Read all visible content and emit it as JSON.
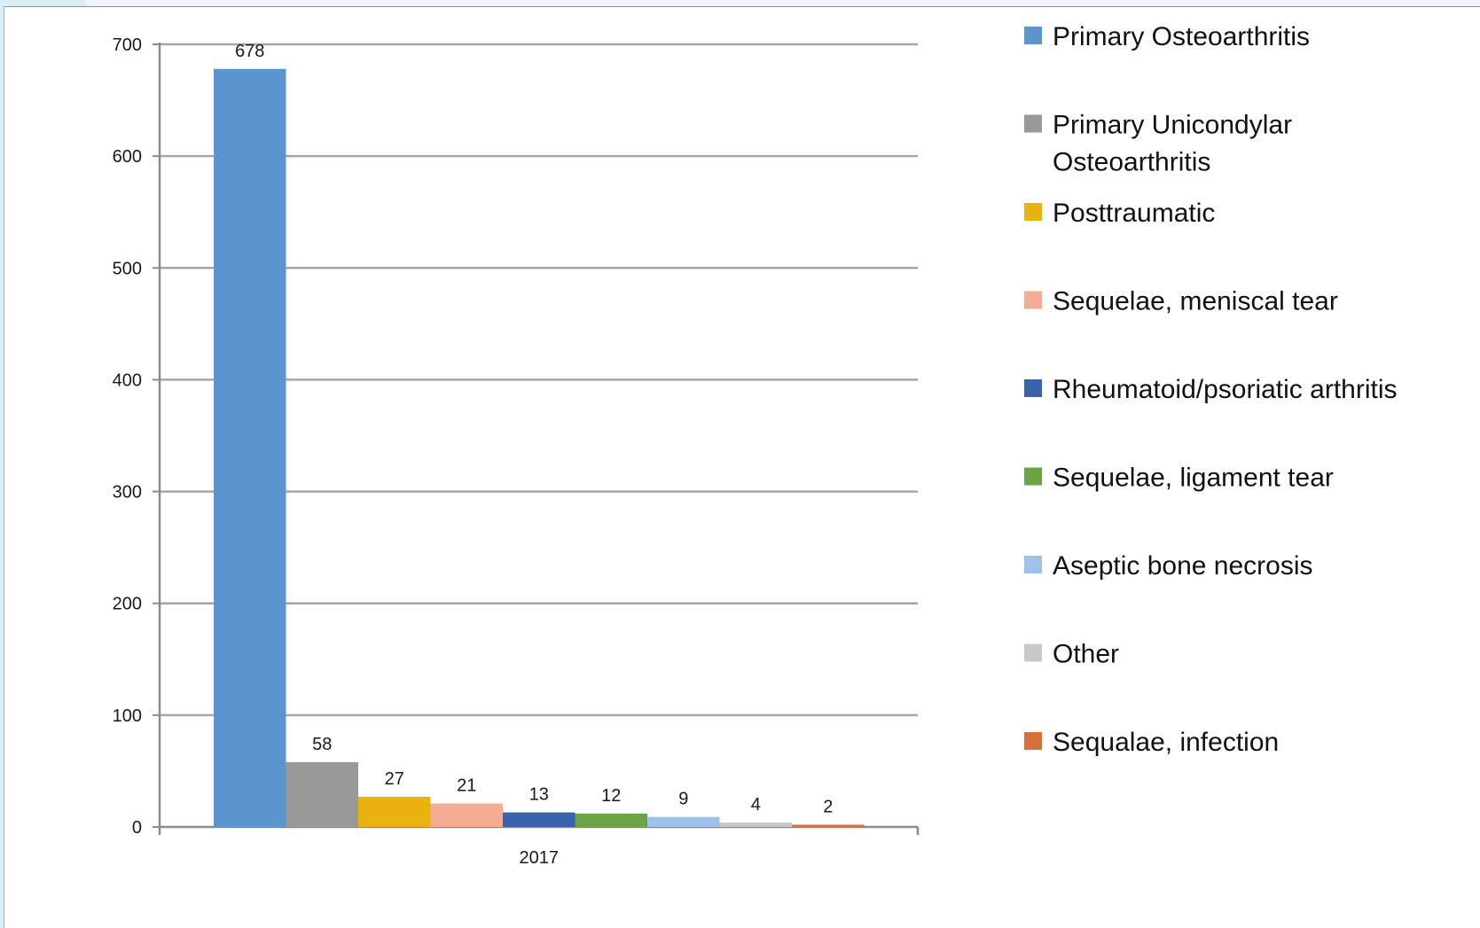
{
  "chart_data": {
    "type": "bar",
    "categories": [
      "2017"
    ],
    "series": [
      {
        "name": "Primary Osteoarthritis",
        "legend_lines": [
          "Primary Osteoarthritis"
        ],
        "values": [
          678
        ],
        "color": "#5b95cd"
      },
      {
        "name": "Primary Unicondylar Osteoarthritis",
        "legend_lines": [
          "Primary Unicondylar",
          "Osteoarthritis"
        ],
        "values": [
          58
        ],
        "color": "#999999"
      },
      {
        "name": "Posttraumatic",
        "legend_lines": [
          "Posttraumatic"
        ],
        "values": [
          27
        ],
        "color": "#e9b20e"
      },
      {
        "name": "Sequelae, meniscal tear",
        "legend_lines": [
          "Sequelae, meniscal tear"
        ],
        "values": [
          21
        ],
        "color": "#f4ac93"
      },
      {
        "name": "Rheumatoid/psoriatic arthritis",
        "legend_lines": [
          "Rheumatoid/psoriatic arthritis"
        ],
        "values": [
          13
        ],
        "color": "#3a63ae"
      },
      {
        "name": "Sequelae, ligament tear",
        "legend_lines": [
          "Sequelae, ligament tear"
        ],
        "values": [
          12
        ],
        "color": "#6aa444"
      },
      {
        "name": "Aseptic bone necrosis",
        "legend_lines": [
          "Aseptic bone necrosis"
        ],
        "values": [
          9
        ],
        "color": "#a0c1e9"
      },
      {
        "name": "Other",
        "legend_lines": [
          "Other"
        ],
        "values": [
          4
        ],
        "color": "#c9c9c9"
      },
      {
        "name": "Sequalae, infection",
        "legend_lines": [
          "Sequalae, infection"
        ],
        "values": [
          2
        ],
        "color": "#d6713a"
      }
    ],
    "title": "",
    "xlabel": "",
    "ylabel": "",
    "ylim": [
      0,
      700
    ],
    "yticks": [
      0,
      100,
      200,
      300,
      400,
      500,
      600,
      700
    ],
    "data_labels": true,
    "grid": true,
    "legend_position": "right"
  }
}
